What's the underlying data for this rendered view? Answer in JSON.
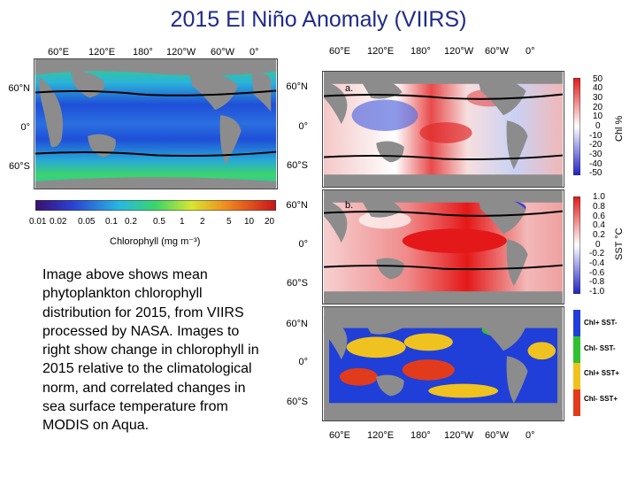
{
  "title": "2015 El Niño Anomaly (VIIRS)",
  "left_map": {
    "lon_labels": [
      "60°E",
      "120°E",
      "180°",
      "120°W",
      "60°W",
      "0°"
    ],
    "lat_labels": [
      "60°N",
      "0°",
      "60°S"
    ],
    "colorbar": {
      "ticks": [
        "0.01",
        "0.02",
        "0.05",
        "0.1",
        "0.2",
        "0.5",
        "1",
        "2",
        "5",
        "10",
        "20"
      ],
      "label": "Chlorophyll (mg m⁻³)"
    }
  },
  "description": "Image above shows mean phytoplankton chlorophyll distribution for 2015, from VIIRS processed by NASA. Images to right show change in chlorophyll in 2015 relative to the climatological norm, and correlated changes in sea surface temperature from MODIS on Aqua.",
  "right_maps": {
    "top_lon_labels": [
      "60°E",
      "120°E",
      "180°",
      "120°W",
      "60°W",
      "0°"
    ],
    "bottom_lon_labels": [
      "60°E",
      "120°E",
      "180°",
      "120°W",
      "60°W",
      "0°"
    ],
    "lat_labels": [
      "60°N",
      "0°",
      "60°S"
    ],
    "panel_a": {
      "letter": "a.",
      "colorbar_ticks": [
        "50",
        "40",
        "30",
        "20",
        "10",
        "0",
        "-10",
        "-20",
        "-30",
        "-40",
        "-50"
      ],
      "colorbar_label": "Chl %"
    },
    "panel_b": {
      "letter": "b.",
      "colorbar_ticks": [
        "1.0",
        "0.8",
        "0.6",
        "0.4",
        "0.2",
        "0",
        "-0.2",
        "-0.4",
        "-0.6",
        "-0.8",
        "-1.0"
      ],
      "colorbar_label": "SST °C"
    },
    "panel_c": {
      "legend": [
        {
          "label": "Chl+ SST-",
          "color": "#1f3fd8"
        },
        {
          "label": "Chl- SST-",
          "color": "#2fc12f"
        },
        {
          "label": "Chl+ SST+",
          "color": "#f0c21f"
        },
        {
          "label": "Chl- SST+",
          "color": "#e23b1b"
        }
      ]
    }
  },
  "colors": {
    "title": "#1f2a8a",
    "land": "#8c8c8c",
    "ocean_low": "#1f4fd8",
    "ocean_high": "#3cd66b"
  }
}
